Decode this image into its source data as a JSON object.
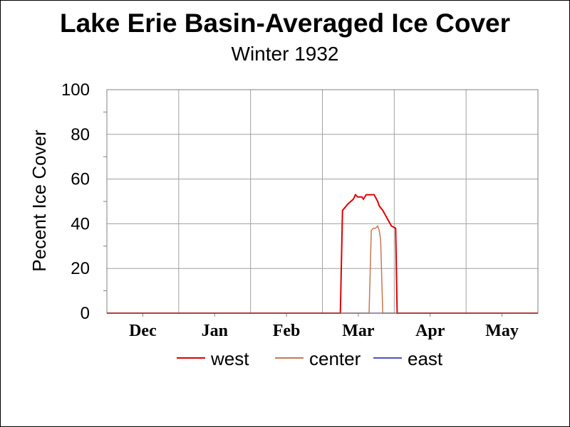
{
  "chart_data": {
    "type": "line",
    "title": "Lake Erie Basin-Averaged Ice Cover",
    "subtitle": "Winter 1932",
    "ylabel": "Pecent Ice Cover",
    "xlabel": "",
    "ylim": [
      0,
      100
    ],
    "yticks": [
      "0",
      "20",
      "40",
      "60",
      "80",
      "100"
    ],
    "categories": [
      "Dec",
      "Jan",
      "Feb",
      "Mar",
      "Apr",
      "May"
    ],
    "grid": true,
    "legend_position": "bottom",
    "colors": {
      "west": "#e00000",
      "center": "#c87850",
      "east": "#5050c8"
    },
    "series": [
      {
        "name": "west",
        "points": [
          [
            0,
            0
          ],
          [
            3.25,
            0
          ],
          [
            3.28,
            46
          ],
          [
            3.36,
            49
          ],
          [
            3.43,
            51
          ],
          [
            3.46,
            53
          ],
          [
            3.49,
            52
          ],
          [
            3.55,
            52
          ],
          [
            3.57,
            51
          ],
          [
            3.61,
            53
          ],
          [
            3.72,
            53
          ],
          [
            3.77,
            50
          ],
          [
            3.79,
            48
          ],
          [
            3.84,
            46
          ],
          [
            3.96,
            39
          ],
          [
            4.02,
            38
          ],
          [
            4.04,
            0
          ],
          [
            6.0,
            0
          ]
        ]
      },
      {
        "name": "center",
        "points": [
          [
            0,
            0
          ],
          [
            3.65,
            0
          ],
          [
            3.68,
            37
          ],
          [
            3.71,
            38
          ],
          [
            3.74,
            38
          ],
          [
            3.77,
            39
          ],
          [
            3.79,
            37
          ],
          [
            3.81,
            33
          ],
          [
            3.84,
            0
          ],
          [
            6.0,
            0
          ]
        ]
      },
      {
        "name": "east",
        "points": [
          [
            0,
            0
          ],
          [
            6.0,
            0
          ]
        ]
      }
    ]
  }
}
